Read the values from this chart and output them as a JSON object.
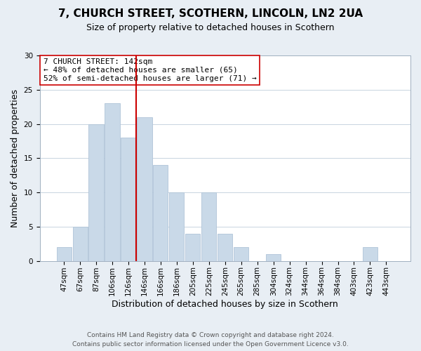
{
  "title": "7, CHURCH STREET, SCOTHERN, LINCOLN, LN2 2UA",
  "subtitle": "Size of property relative to detached houses in Scothern",
  "xlabel": "Distribution of detached houses by size in Scothern",
  "ylabel": "Number of detached properties",
  "bar_labels": [
    "47sqm",
    "67sqm",
    "87sqm",
    "106sqm",
    "126sqm",
    "146sqm",
    "166sqm",
    "186sqm",
    "205sqm",
    "225sqm",
    "245sqm",
    "265sqm",
    "285sqm",
    "304sqm",
    "324sqm",
    "344sqm",
    "364sqm",
    "384sqm",
    "403sqm",
    "423sqm",
    "443sqm"
  ],
  "bar_values": [
    2,
    5,
    20,
    23,
    18,
    21,
    14,
    10,
    4,
    10,
    4,
    2,
    0,
    1,
    0,
    0,
    0,
    0,
    0,
    2,
    0
  ],
  "bar_color": "#c9d9e8",
  "bar_edge_color": "#b0c4d8",
  "vline_index": 5,
  "vline_color": "#cc0000",
  "ylim": [
    0,
    30
  ],
  "yticks": [
    0,
    5,
    10,
    15,
    20,
    25,
    30
  ],
  "annotation_title": "7 CHURCH STREET: 142sqm",
  "annotation_line1": "← 48% of detached houses are smaller (65)",
  "annotation_line2": "52% of semi-detached houses are larger (71) →",
  "annotation_box_facecolor": "#ffffff",
  "annotation_box_edgecolor": "#cc0000",
  "footer1": "Contains HM Land Registry data © Crown copyright and database right 2024.",
  "footer2": "Contains public sector information licensed under the Open Government Licence v3.0.",
  "background_color": "#e8eef4",
  "plot_bg_color": "#ffffff",
  "grid_color": "#c8d4e0",
  "title_fontsize": 11,
  "subtitle_fontsize": 9,
  "xlabel_fontsize": 9,
  "ylabel_fontsize": 9,
  "tick_fontsize": 7.5,
  "footer_fontsize": 6.5,
  "annotation_fontsize": 8
}
